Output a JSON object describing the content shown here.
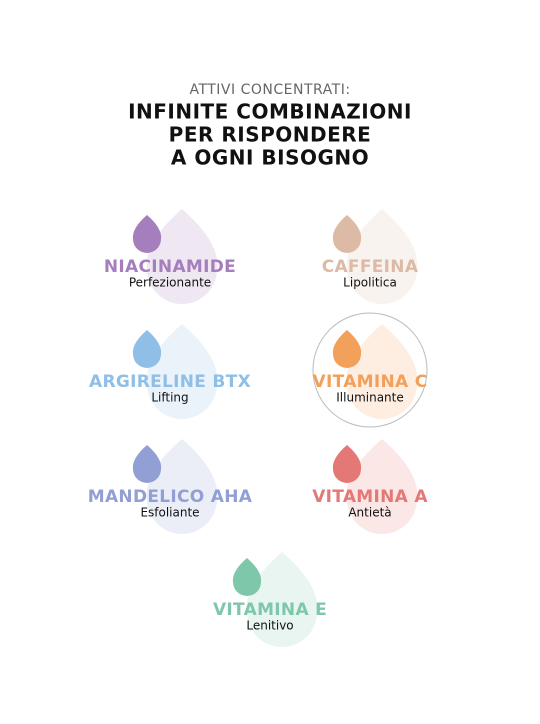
{
  "header": {
    "subtitle": "ATTIVI CONCENTRATI:",
    "title": [
      "INFINITE COMBINAZIONI",
      "PER RISPONDERE",
      "A OGNI BISOGNO"
    ]
  },
  "items": [
    {
      "name": "NIACINAMIDE",
      "description": "Perfezionante",
      "color": "#a57fbd"
    },
    {
      "name": "CAFFEINA",
      "description": "Lipolitica",
      "color": "#ddbaa5"
    },
    {
      "name": "ARGIRELINE BTX",
      "description": "Lifting",
      "color": "#8fbfe6"
    },
    {
      "name": "VITAMINA C",
      "description": "Illuminante",
      "color": "#f2a05a"
    },
    {
      "name": "MANDELICO AHA",
      "description": "Esfoliante",
      "color": "#929fd4"
    },
    {
      "name": "VITAMINA A",
      "description": "Antietà",
      "color": "#e47876"
    },
    {
      "name": "VITAMINA E",
      "description": "Lenitivo",
      "color": "#7ec7aa"
    }
  ]
}
